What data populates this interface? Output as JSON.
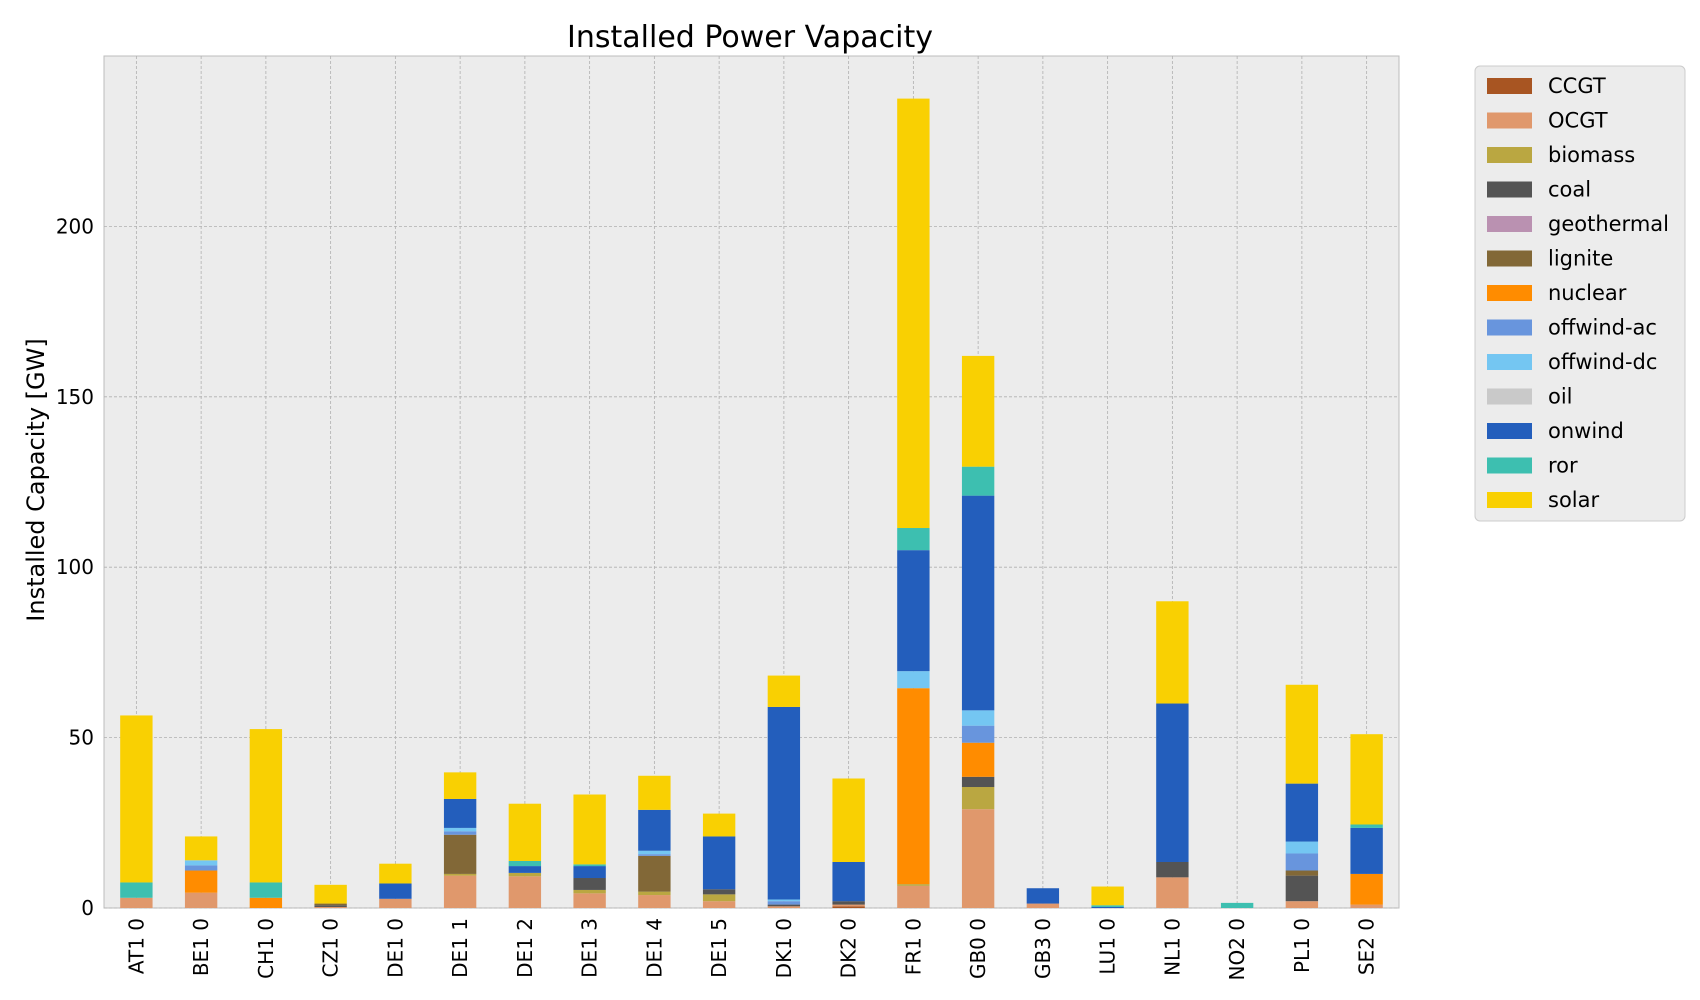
{
  "chart_data": {
    "type": "bar",
    "stacked": true,
    "title": "Installed Power Vapacity",
    "xlabel": "",
    "ylabel": "Installed Capacity [GW]",
    "ylim": [
      0,
      250
    ],
    "yticks": [
      0,
      50,
      100,
      150,
      200
    ],
    "grid": true,
    "legend_position": "outside-right",
    "categories": [
      "AT1 0",
      "BE1 0",
      "CH1 0",
      "CZ1 0",
      "DE1 0",
      "DE1 1",
      "DE1 2",
      "DE1 3",
      "DE1 4",
      "DE1 5",
      "DK1 0",
      "DK2 0",
      "FR1 0",
      "GB0 0",
      "GB3 0",
      "LU1 0",
      "NL1 0",
      "NO2 0",
      "PL1 0",
      "SE2 0"
    ],
    "series": [
      {
        "name": "CCGT",
        "color": "#a85522",
        "values": [
          0,
          0,
          0,
          0,
          0,
          0,
          0,
          0,
          0,
          0,
          0,
          0.5,
          0,
          0,
          0,
          0,
          0,
          0,
          0,
          0
        ]
      },
      {
        "name": "OCGT",
        "color": "#e0986c",
        "values": [
          3,
          4.5,
          0,
          0.3,
          2.7,
          9.5,
          9.3,
          4.3,
          3.8,
          2,
          0.5,
          0.5,
          6.5,
          29,
          1.3,
          0,
          9,
          0,
          2,
          1
        ]
      },
      {
        "name": "biomass",
        "color": "#baa741",
        "values": [
          0,
          0,
          0,
          0,
          0,
          0.5,
          1,
          1,
          1,
          2,
          0,
          0,
          0.5,
          6.5,
          0,
          0,
          0,
          0,
          0,
          0
        ]
      },
      {
        "name": "coal",
        "color": "#545454",
        "values": [
          0,
          0,
          0,
          0.5,
          0,
          0,
          0,
          3.5,
          0,
          1.5,
          0.5,
          1,
          0,
          3,
          0,
          0,
          4.5,
          0,
          7.5,
          0
        ]
      },
      {
        "name": "geothermal",
        "color": "#ba91b1",
        "values": [
          0,
          0,
          0,
          0,
          0,
          0,
          0,
          0,
          0,
          0,
          0,
          0,
          0,
          0,
          0,
          0,
          0,
          0,
          0,
          0
        ]
      },
      {
        "name": "lignite",
        "color": "#826837",
        "values": [
          0,
          0,
          0,
          0.5,
          0,
          11.5,
          0,
          0,
          10.5,
          0,
          0,
          0,
          0,
          0,
          0,
          0,
          0,
          0,
          1.5,
          0
        ]
      },
      {
        "name": "nuclear",
        "color": "#ff8c00",
        "values": [
          0,
          6.5,
          3,
          0,
          0,
          0,
          0,
          0,
          0,
          0,
          0,
          0,
          57.5,
          10,
          0,
          0,
          0,
          0,
          0,
          9
        ]
      },
      {
        "name": "offwind-ac",
        "color": "#6895dd",
        "values": [
          0,
          1.5,
          0,
          0,
          0,
          1,
          0,
          0,
          0.5,
          0,
          1,
          0,
          0,
          5,
          0,
          0,
          0,
          0,
          5,
          0
        ]
      },
      {
        "name": "offwind-dc",
        "color": "#74c6f2",
        "values": [
          0,
          1.5,
          0,
          0,
          0,
          1,
          0,
          0,
          1,
          0,
          0.5,
          0,
          5,
          4.5,
          0,
          0,
          0,
          0,
          3.5,
          0
        ]
      },
      {
        "name": "oil",
        "color": "#c9c9c9",
        "values": [
          0,
          0,
          0,
          0,
          0,
          0,
          0,
          0,
          0,
          0,
          0,
          0,
          0,
          0,
          0,
          0,
          0,
          0,
          0,
          0
        ]
      },
      {
        "name": "onwind",
        "color": "#235ebc",
        "values": [
          0,
          0,
          0,
          0,
          4.5,
          8.5,
          2,
          3.5,
          12,
          15.5,
          56.5,
          11.5,
          35.5,
          63,
          4.5,
          0.3,
          46.5,
          0,
          17,
          13.5
        ]
      },
      {
        "name": "ror",
        "color": "#3dbfb0",
        "values": [
          4.5,
          0,
          4.5,
          0,
          0,
          0,
          1.5,
          0.5,
          0,
          0,
          0,
          0,
          6.5,
          8.5,
          0,
          0.5,
          0,
          1.5,
          0,
          1
        ]
      },
      {
        "name": "solar",
        "color": "#f9d002",
        "values": [
          49,
          7,
          45,
          5.5,
          5.8,
          7.8,
          16.8,
          20.5,
          10,
          6.7,
          9.2,
          24.5,
          126,
          32.5,
          0,
          5.5,
          30,
          0,
          29,
          26.5
        ]
      }
    ]
  }
}
